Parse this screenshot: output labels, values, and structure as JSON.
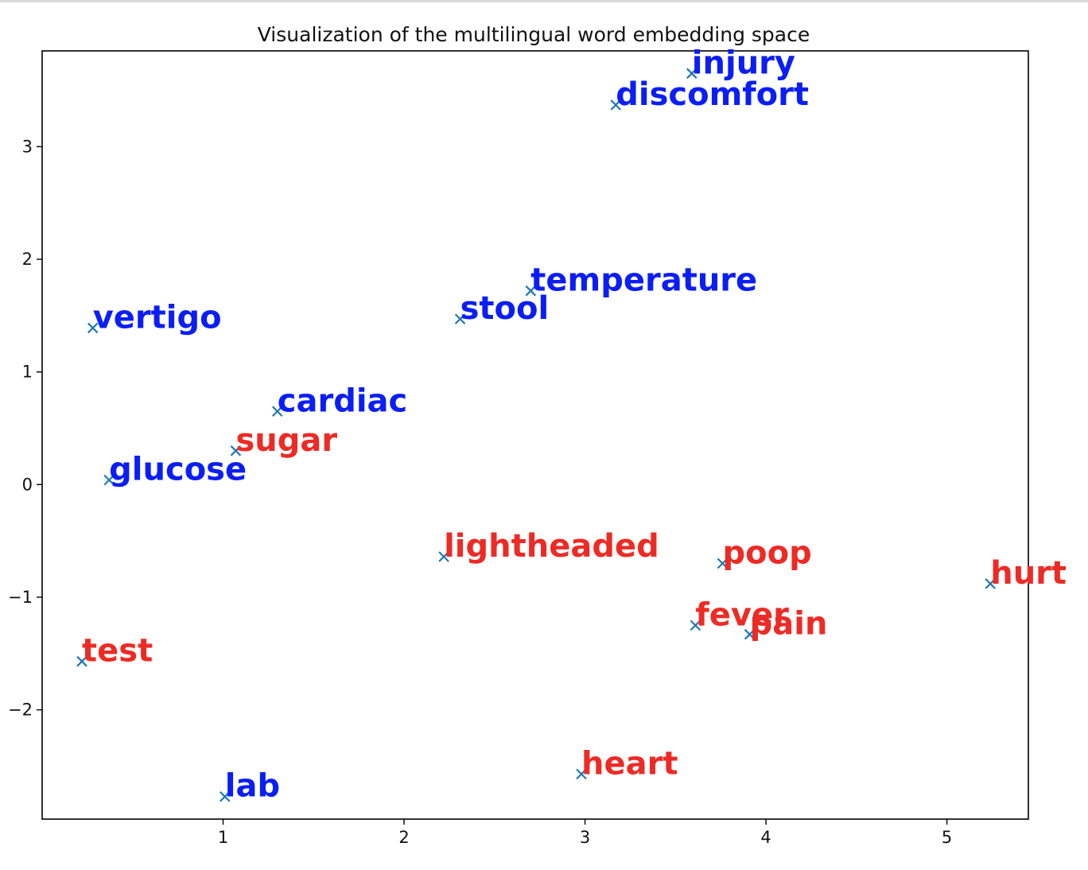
{
  "chart_data": {
    "type": "scatter",
    "title": "Visualization of the multilingual word embedding space",
    "xlabel": "",
    "ylabel": "",
    "xlim": [
      0.0,
      5.45
    ],
    "ylim": [
      -2.97,
      3.85
    ],
    "xticks": [
      1,
      2,
      3,
      4,
      5
    ],
    "yticks": [
      -2,
      -1,
      0,
      1,
      2,
      3
    ],
    "grid": false,
    "legend": null,
    "marker": "x",
    "marker_color": "#1f77b4",
    "series_colors": {
      "blue": "#0a1ef5",
      "red": "#ee2a24"
    },
    "points": [
      {
        "word": "injury",
        "x": 3.59,
        "y": 3.65,
        "color": "blue"
      },
      {
        "word": "discomfort",
        "x": 3.17,
        "y": 3.37,
        "color": "blue"
      },
      {
        "word": "temperature",
        "x": 2.7,
        "y": 1.72,
        "color": "blue"
      },
      {
        "word": "stool",
        "x": 2.31,
        "y": 1.47,
        "color": "blue"
      },
      {
        "word": "vertigo",
        "x": 0.28,
        "y": 1.39,
        "color": "blue"
      },
      {
        "word": "cardiac",
        "x": 1.3,
        "y": 0.65,
        "color": "blue"
      },
      {
        "word": "sugar",
        "x": 1.07,
        "y": 0.3,
        "color": "red"
      },
      {
        "word": "glucose",
        "x": 0.37,
        "y": 0.04,
        "color": "blue"
      },
      {
        "word": "lightheaded",
        "x": 2.22,
        "y": -0.64,
        "color": "red"
      },
      {
        "word": "poop",
        "x": 3.76,
        "y": -0.7,
        "color": "red"
      },
      {
        "word": "hurt",
        "x": 5.24,
        "y": -0.88,
        "color": "red"
      },
      {
        "word": "fever",
        "x": 3.61,
        "y": -1.25,
        "color": "red"
      },
      {
        "word": "pain",
        "x": 3.91,
        "y": -1.33,
        "color": "red"
      },
      {
        "word": "test",
        "x": 0.22,
        "y": -1.57,
        "color": "red"
      },
      {
        "word": "heart",
        "x": 2.98,
        "y": -2.57,
        "color": "red"
      },
      {
        "word": "lab",
        "x": 1.01,
        "y": -2.77,
        "color": "blue"
      }
    ]
  }
}
